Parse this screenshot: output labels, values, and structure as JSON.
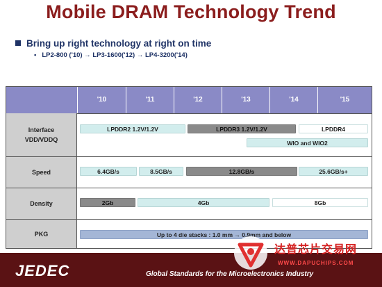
{
  "title": "Mobile DRAM Technology Trend",
  "bullet_main": "Bring up right technology at right on time",
  "bullet_sub": "LP2-800 ('10) → LP3-1600('12) → LP4-3200('14)",
  "table": {
    "years": [
      "'10",
      "'11",
      "'12",
      "'13",
      "'14",
      "'15"
    ],
    "rows": {
      "interface": "Interface\nVDD/VDDQ",
      "speed": "Speed",
      "density": "Density",
      "pkg": "PKG"
    },
    "bars": {
      "lpddr2": "LPDDR2 1.2V/1.2V",
      "lpddr3": "LPDDR3 1.2V/1.2V",
      "lpddr4": "LPDDR4",
      "wio": "WIO and WIO2",
      "s64": "6.4GB/s",
      "s85": "8.5GB/s",
      "s128": "12.8GB/s",
      "s256": "25.6GB/s+",
      "d2": "2Gb",
      "d4": "4Gb",
      "d8": "8Gb",
      "pkg": "Up to 4 die stacks : 1.0 mm → 0.9mm and below"
    }
  },
  "footer": {
    "brand": "JEDEC",
    "slogan": "Global Standards for the Microelectronics Industry"
  },
  "watermark": {
    "name": "达普芯片交易网",
    "url": "WWW.DAPUCHIPS.COM"
  }
}
